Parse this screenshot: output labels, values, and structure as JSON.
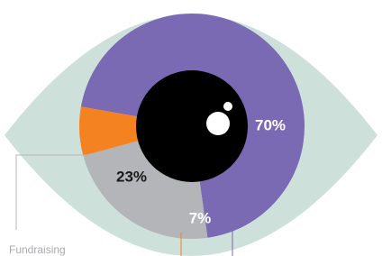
{
  "chart_data": {
    "type": "pie",
    "categories": [
      null,
      "Fundraising",
      null
    ],
    "values": [
      70,
      23,
      7
    ],
    "value_labels": [
      "70%",
      "23%",
      "7%"
    ],
    "colors": [
      "#7a69b3",
      "#b3b5b8",
      "#f58220"
    ]
  }
}
